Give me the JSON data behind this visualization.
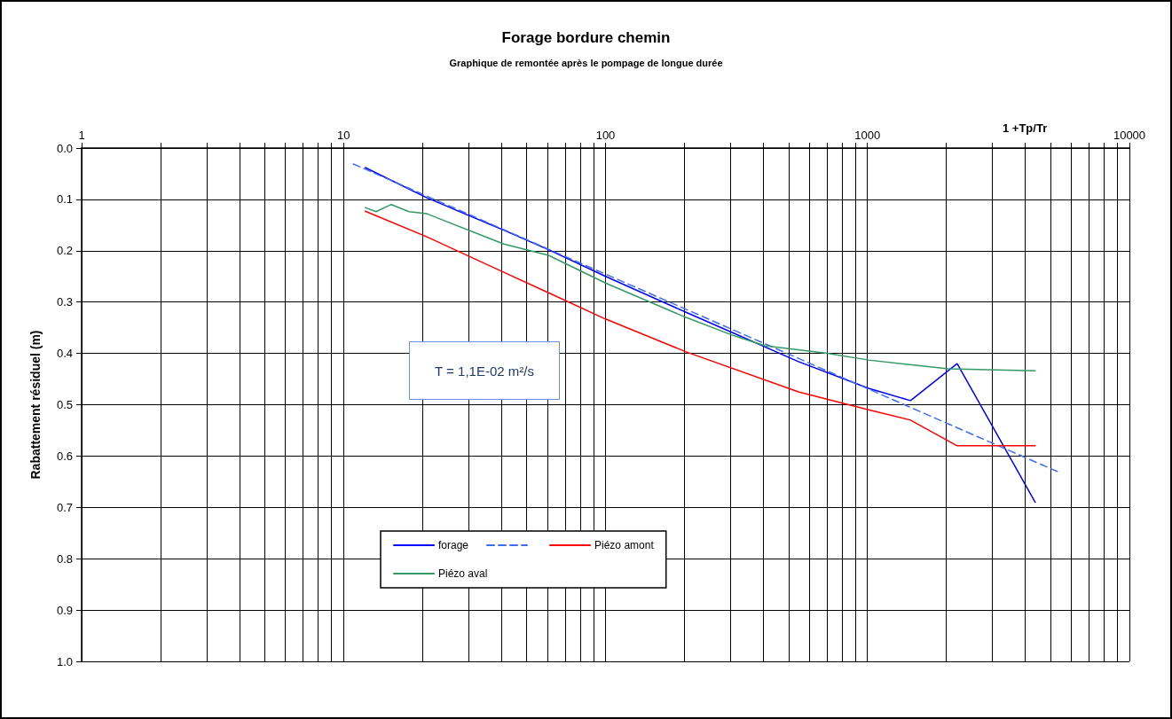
{
  "chart_data": {
    "type": "line",
    "title": "Forage bordure chemin",
    "subtitle": "Graphique de remontée après le pompage de longue durée",
    "xlabel": "1 +Tp/Tr",
    "ylabel": "Rabattement résiduel (m)",
    "annotations": [
      "T = 1,1E-02 m²/s"
    ],
    "log": "x",
    "xlim": [
      1,
      10000
    ],
    "ylim": [
      1.0,
      0.0
    ],
    "xticks": [
      1,
      {
        "value": 2,
        "label": null
      },
      {
        "value": 3,
        "label": null
      },
      {
        "value": 4,
        "label": null
      },
      {
        "value": 5,
        "label": null
      },
      {
        "value": 6,
        "label": null
      },
      {
        "value": 7,
        "label": null
      },
      {
        "value": 8,
        "label": null
      },
      {
        "value": 9,
        "label": null
      },
      10,
      {
        "value": 20,
        "label": null
      },
      {
        "value": 30,
        "label": null
      },
      {
        "value": 40,
        "label": null
      },
      {
        "value": 50,
        "label": null
      },
      {
        "value": 60,
        "label": null
      },
      {
        "value": 70,
        "label": null
      },
      {
        "value": 80,
        "label": null
      },
      {
        "value": 90,
        "label": null
      },
      100,
      {
        "value": 200,
        "label": null
      },
      {
        "value": 300,
        "label": null
      },
      {
        "value": 400,
        "label": null
      },
      {
        "value": 500,
        "label": null
      },
      {
        "value": 600,
        "label": null
      },
      {
        "value": 700,
        "label": null
      },
      {
        "value": 800,
        "label": null
      },
      {
        "value": 900,
        "label": null
      },
      1000,
      {
        "value": 2000,
        "label": null
      },
      {
        "value": 3000,
        "label": null
      },
      {
        "value": 4000,
        "label": null
      },
      {
        "value": 5000,
        "label": null
      },
      {
        "value": 6000,
        "label": null
      },
      {
        "value": 7000,
        "label": null
      },
      {
        "value": 8000,
        "label": null
      },
      {
        "value": 9000,
        "label": null
      },
      10000
    ],
    "yticks": [
      {
        "value": 0,
        "label": "0.0"
      },
      0.1,
      0.2,
      0.3,
      0.4,
      0.5,
      0.6,
      0.7,
      0.8,
      0.9,
      {
        "value": 1,
        "label": "1.0"
      }
    ],
    "grid": true,
    "legend": "bottom",
    "marker": "none",
    "series": [
      {
        "name": "forage",
        "color": "#0000ff",
        "line_style": "solid",
        "x": [
          12.1,
          20.8,
          40.9,
          60.6,
          100,
          203,
          307,
          545,
          1010,
          1460,
          2200,
          4370
        ],
        "values": [
          0.038,
          0.097,
          0.16,
          0.198,
          0.25,
          0.32,
          0.36,
          0.416,
          0.468,
          0.492,
          0.42,
          0.69
        ]
      },
      {
        "color": "#3d6cf0",
        "line_style": "dashed",
        "x": [
          10.9,
          5300
        ],
        "values": [
          0.031,
          0.63
        ]
      },
      {
        "name": "Piézo amont",
        "color": "#ff0000",
        "line_style": "solid",
        "x": [
          12.1,
          20.8,
          40.9,
          60.6,
          100,
          203,
          545,
          1010,
          1460,
          2200,
          4370
        ],
        "values": [
          0.123,
          0.173,
          0.242,
          0.282,
          0.333,
          0.397,
          0.475,
          0.51,
          0.53,
          0.58,
          0.58
        ]
      },
      {
        "name": "Piézo aval",
        "color": "#339966",
        "line_style": "solid",
        "x": [
          12.1,
          13.3,
          15.2,
          17.8,
          20.8,
          40.9,
          60.6,
          100,
          203,
          307,
          406,
          702,
          1010,
          2040,
          4370
        ],
        "values": [
          0.116,
          0.124,
          0.11,
          0.124,
          0.128,
          0.187,
          0.209,
          0.263,
          0.33,
          0.365,
          0.385,
          0.4,
          0.413,
          0.43,
          0.434
        ]
      }
    ]
  }
}
